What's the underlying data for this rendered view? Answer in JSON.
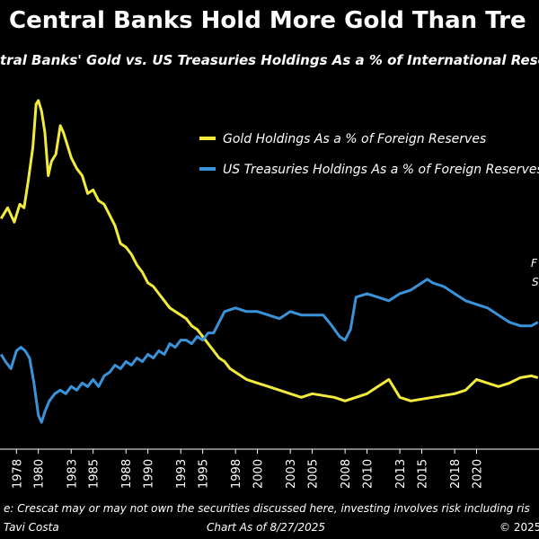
{
  "title": "Central Banks Hold More Gold Than Tre",
  "subtitle": "tral Banks' Gold vs. US Treasuries Holdings As a % of International Reser",
  "side_labels": [
    "F",
    "S"
  ],
  "footer": {
    "disclaimer": "e: Crescat may or may not own the securities discussed here, investing involves risk including ris",
    "author": "Tavi Costa",
    "as_of": "Chart As of 8/27/2025",
    "copyright": "© 2025"
  },
  "colors": {
    "gold": "#F2EA3C",
    "treasuries": "#3A93D9",
    "background": "#000000",
    "text": "#FFFFFF"
  },
  "chart_data": {
    "type": "line",
    "title": "Central Banks Hold More Gold Than Tre",
    "subtitle": "tral Banks' Gold vs. US Treasuries Holdings As a % of International Reser",
    "xlabel": "",
    "ylabel": "",
    "legend_placement": "top-right",
    "grid": false,
    "x_ticks": [
      "1978",
      "1980",
      "1983",
      "1985",
      "1988",
      "1990",
      "1993",
      "1995",
      "1998",
      "2000",
      "2003",
      "2005",
      "2008",
      "2010",
      "2013",
      "2015",
      "2018",
      "2020"
    ],
    "xlim": [
      1976.5,
      2025.7
    ],
    "ylim": [
      0,
      100
    ],
    "series": [
      {
        "name": "Gold Holdings As a % of Foreign Reserves",
        "color": "#F2EA3C",
        "x": [
          1976.6,
          1977.2,
          1977.8,
          1978.3,
          1978.7,
          1979.1,
          1979.5,
          1979.8,
          1980.0,
          1980.3,
          1980.6,
          1980.9,
          1981.2,
          1981.6,
          1982.0,
          1982.3,
          1982.6,
          1983.0,
          1983.5,
          1984.0,
          1984.5,
          1985.0,
          1985.5,
          1986.0,
          1986.5,
          1987.0,
          1987.5,
          1988.0,
          1988.5,
          1989.0,
          1989.5,
          1990.0,
          1990.5,
          1991.0,
          1991.5,
          1992.0,
          1992.5,
          1993.0,
          1993.5,
          1994.0,
          1994.5,
          1995.0,
          1995.5,
          1996.0,
          1996.5,
          1997.0,
          1997.5,
          1998.0,
          1998.5,
          1999.0,
          1999.5,
          2000.0,
          2001.0,
          2002.0,
          2003.0,
          2004.0,
          2005.0,
          2006.0,
          2007.0,
          2008.0,
          2009.0,
          2010.0,
          2011.0,
          2012.0,
          2013.0,
          2014.0,
          2015.0,
          2016.0,
          2017.0,
          2018.0,
          2019.0,
          2020.0,
          2021.0,
          2022.0,
          2023.0,
          2024.0,
          2025.0,
          2025.6
        ],
        "values": [
          64,
          67,
          63,
          68,
          67,
          75,
          84,
          96,
          97,
          94,
          88,
          76,
          80,
          82,
          90,
          88,
          85,
          81,
          78,
          76,
          71,
          72,
          69,
          68,
          65,
          62,
          57,
          56,
          54,
          51,
          49,
          46,
          45,
          43,
          41,
          39,
          38,
          37,
          36,
          34,
          33,
          31,
          29,
          27,
          25,
          24,
          22,
          21,
          20,
          19,
          18.5,
          18,
          17,
          16,
          15,
          14,
          15,
          14.5,
          14,
          13,
          14,
          15,
          17,
          19,
          14,
          13,
          13.5,
          14,
          14.5,
          15,
          16,
          19,
          18,
          17,
          18,
          19.5,
          20,
          19.5
        ]
      },
      {
        "name": "US Treasuries Holdings As a % of Foreign Reserves",
        "color": "#3A93D9",
        "x": [
          1976.6,
          1977.0,
          1977.5,
          1978.0,
          1978.4,
          1978.8,
          1979.2,
          1979.6,
          1980.0,
          1980.3,
          1980.6,
          1981.0,
          1981.5,
          1982.0,
          1982.5,
          1983.0,
          1983.5,
          1984.0,
          1984.5,
          1985.0,
          1985.5,
          1986.0,
          1986.5,
          1987.0,
          1987.5,
          1988.0,
          1988.5,
          1989.0,
          1989.5,
          1990.0,
          1990.5,
          1991.0,
          1991.5,
          1992.0,
          1992.5,
          1993.0,
          1993.5,
          1994.0,
          1994.5,
          1995.0,
          1995.5,
          1996.0,
          1996.5,
          1997.0,
          1998.0,
          1999.0,
          2000.0,
          2001.0,
          2002.0,
          2003.0,
          2004.0,
          2005.0,
          2006.0,
          2006.8,
          2007.5,
          2008.0,
          2008.5,
          2009.0,
          2010.0,
          2011.0,
          2012.0,
          2013.0,
          2014.0,
          2015.0,
          2015.5,
          2016.0,
          2017.0,
          2018.0,
          2019.0,
          2020.0,
          2021.0,
          2022.0,
          2023.0,
          2024.0,
          2025.0,
          2025.6
        ],
        "values": [
          26,
          24,
          22,
          27,
          28,
          27,
          25,
          18,
          9,
          7,
          10,
          13,
          15,
          16,
          15,
          17,
          16,
          18,
          17,
          19,
          17,
          20,
          21,
          23,
          22,
          24,
          23,
          25,
          24,
          26,
          25,
          27,
          26,
          29,
          28,
          30,
          30,
          29,
          31,
          30,
          32,
          32,
          35,
          38,
          39,
          38,
          38,
          37,
          36,
          38,
          37,
          37,
          37,
          34,
          31,
          30,
          33,
          42,
          43,
          42,
          41,
          43,
          44,
          46,
          47,
          46,
          45,
          43,
          41,
          40,
          39,
          37,
          35,
          34,
          34,
          35
        ]
      }
    ]
  }
}
